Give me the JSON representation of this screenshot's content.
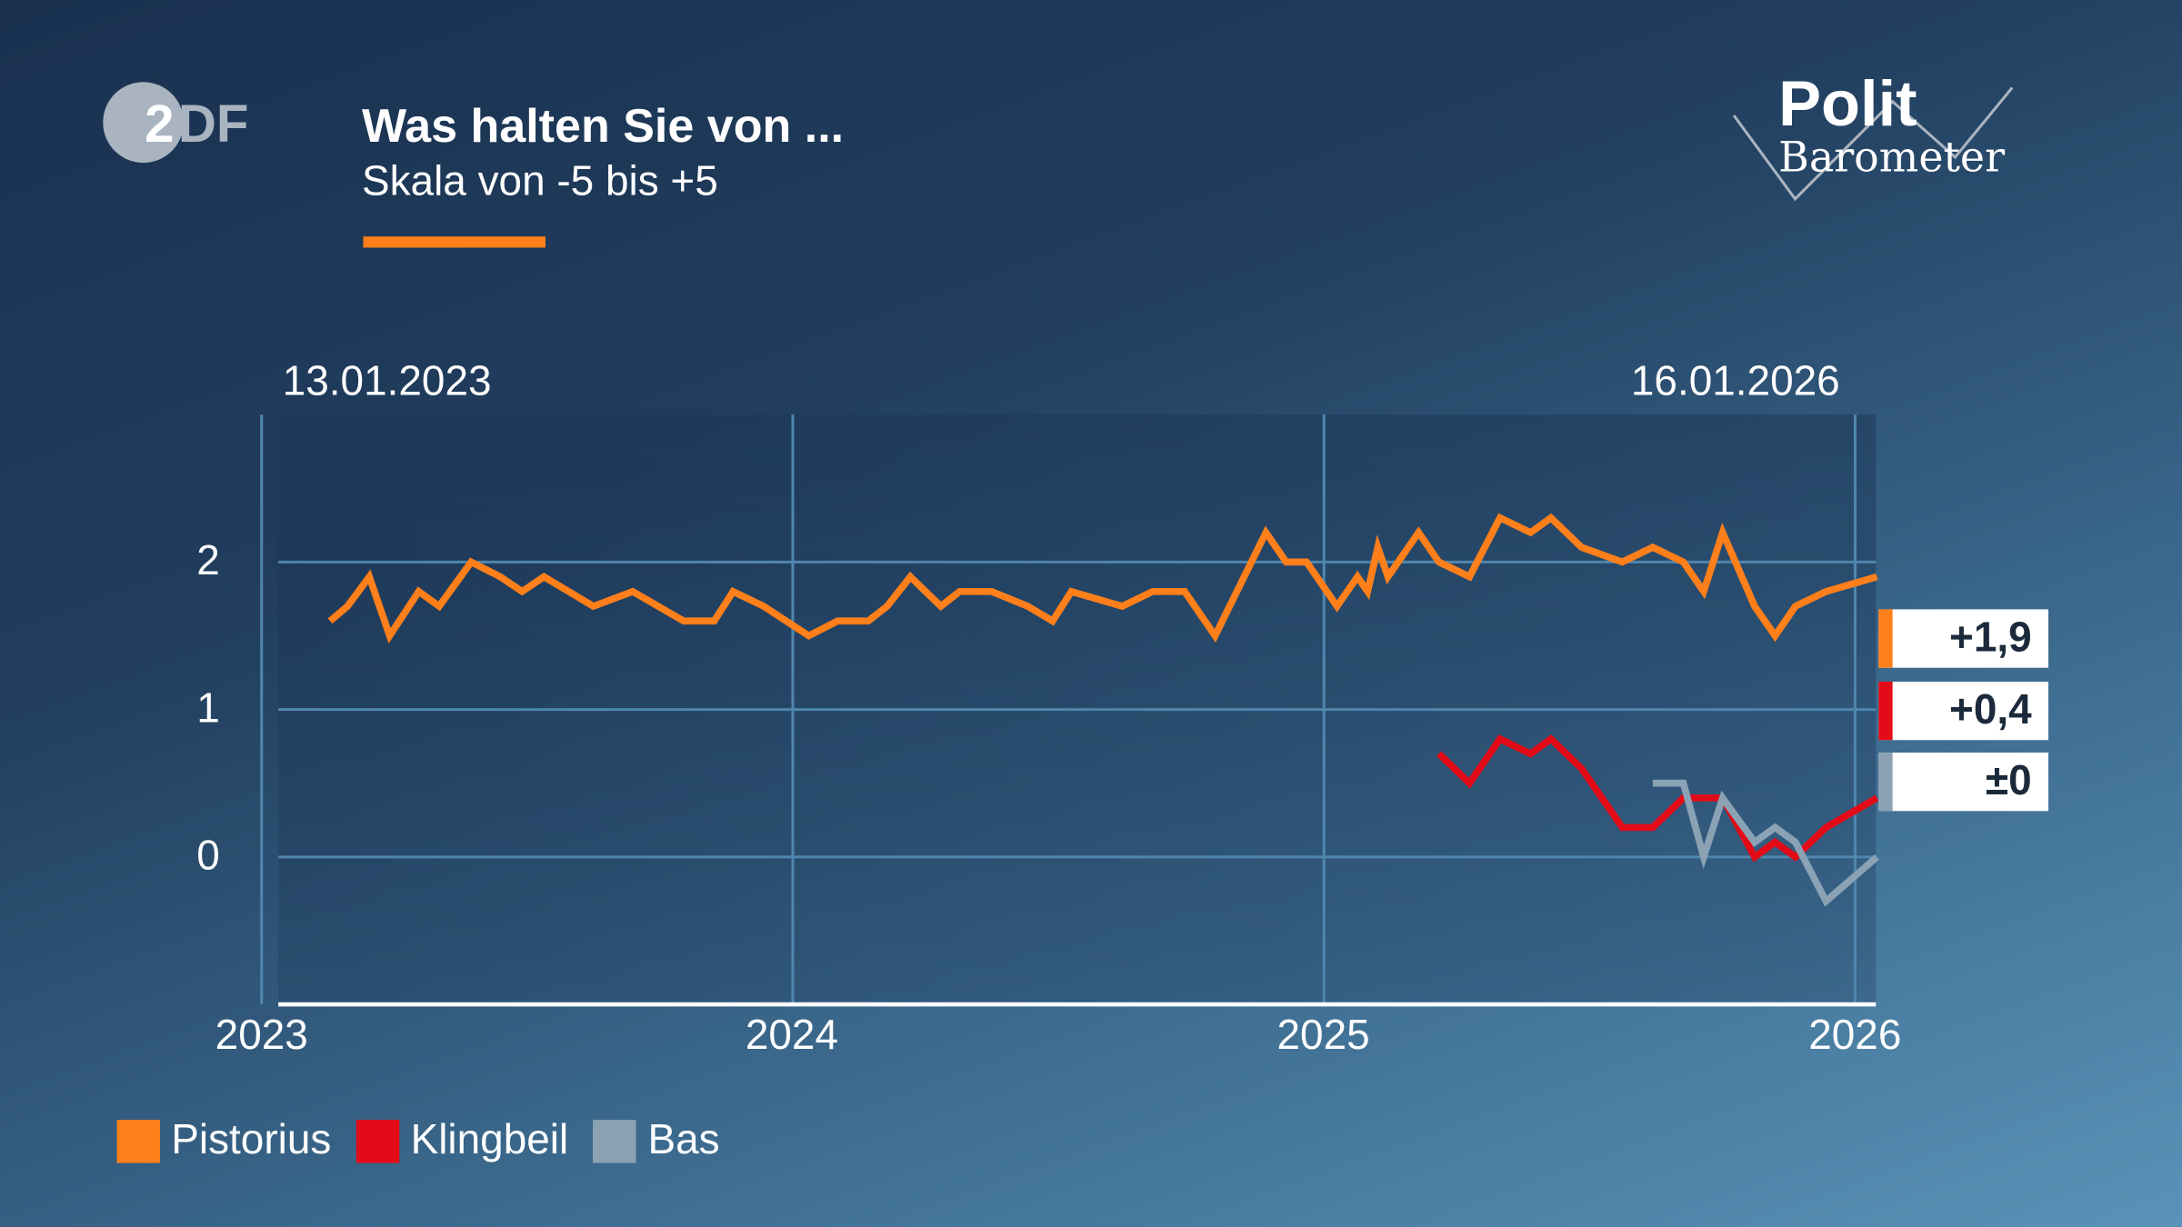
{
  "header": {
    "title": "Was halten Sie von ...",
    "subtitle": "Skala von -5 bis +5",
    "logo_left": "ZDF",
    "logo_right": "Polit Barometer"
  },
  "chart_data": {
    "type": "line",
    "title": "Was halten Sie von ...",
    "subtitle": "Skala von -5 bis +5",
    "start_label": "13.01.2023",
    "end_label": "16.01.2026",
    "ylim": [
      -1,
      3
    ],
    "yticks": [
      "0",
      "1",
      "2"
    ],
    "xticks": [
      "2023",
      "2024",
      "2025",
      "2026"
    ],
    "grid": true,
    "legend_position": "bottom-left",
    "series": [
      {
        "name": "Pistorius",
        "color": "#ff7f1a",
        "last_label": "+1,9",
        "points": [
          [
            "2023-02-17",
            1.6
          ],
          [
            "2023-03-01",
            1.7
          ],
          [
            "2023-03-16",
            1.9
          ],
          [
            "2023-03-30",
            1.5
          ],
          [
            "2023-04-19",
            1.8
          ],
          [
            "2023-05-03",
            1.7
          ],
          [
            "2023-05-25",
            2.0
          ],
          [
            "2023-06-14",
            1.9
          ],
          [
            "2023-06-29",
            1.8
          ],
          [
            "2023-07-14",
            1.9
          ],
          [
            "2023-08-17",
            1.7
          ],
          [
            "2023-09-13",
            1.8
          ],
          [
            "2023-10-18",
            1.6
          ],
          [
            "2023-11-08",
            1.6
          ],
          [
            "2023-11-21",
            1.8
          ],
          [
            "2023-12-12",
            1.7
          ],
          [
            "2024-01-12",
            1.5
          ],
          [
            "2024-02-01",
            1.6
          ],
          [
            "2024-02-22",
            1.6
          ],
          [
            "2024-03-06",
            1.7
          ],
          [
            "2024-03-22",
            1.9
          ],
          [
            "2024-04-12",
            1.7
          ],
          [
            "2024-04-25",
            1.8
          ],
          [
            "2024-05-17",
            1.8
          ],
          [
            "2024-06-11",
            1.7
          ],
          [
            "2024-06-28",
            1.6
          ],
          [
            "2024-07-11",
            1.8
          ],
          [
            "2024-08-15",
            1.7
          ],
          [
            "2024-09-05",
            1.8
          ],
          [
            "2024-09-27",
            1.8
          ],
          [
            "2024-10-18",
            1.5
          ],
          [
            "2024-11-22",
            2.2
          ],
          [
            "2024-12-06",
            2.0
          ],
          [
            "2024-12-20",
            2.0
          ],
          [
            "2025-01-10",
            1.7
          ],
          [
            "2025-01-24",
            1.9
          ],
          [
            "2025-01-31",
            1.8
          ],
          [
            "2025-02-07",
            2.1
          ],
          [
            "2025-02-14",
            1.9
          ],
          [
            "2025-03-07",
            2.2
          ],
          [
            "2025-03-21",
            2.0
          ],
          [
            "2025-04-11",
            1.9
          ],
          [
            "2025-05-02",
            2.3
          ],
          [
            "2025-05-23",
            2.2
          ],
          [
            "2025-06-06",
            2.3
          ],
          [
            "2025-06-27",
            2.1
          ],
          [
            "2025-07-25",
            2.0
          ],
          [
            "2025-08-15",
            2.1
          ],
          [
            "2025-09-05",
            2.0
          ],
          [
            "2025-09-19",
            1.8
          ],
          [
            "2025-10-02",
            2.2
          ],
          [
            "2025-10-24",
            1.7
          ],
          [
            "2025-11-07",
            1.5
          ],
          [
            "2025-11-21",
            1.7
          ],
          [
            "2025-12-12",
            1.8
          ],
          [
            "2026-01-16",
            1.9
          ]
        ]
      },
      {
        "name": "Klingbeil",
        "color": "#e30b17",
        "last_label": "+0,4",
        "points": [
          [
            "2025-03-21",
            0.7
          ],
          [
            "2025-04-11",
            0.5
          ],
          [
            "2025-05-02",
            0.8
          ],
          [
            "2025-05-23",
            0.7
          ],
          [
            "2025-06-06",
            0.8
          ],
          [
            "2025-06-27",
            0.6
          ],
          [
            "2025-07-25",
            0.2
          ],
          [
            "2025-08-15",
            0.2
          ],
          [
            "2025-09-05",
            0.4
          ],
          [
            "2025-10-02",
            0.4
          ],
          [
            "2025-10-24",
            0.0
          ],
          [
            "2025-11-07",
            0.1
          ],
          [
            "2025-11-21",
            0.0
          ],
          [
            "2025-12-12",
            0.2
          ],
          [
            "2026-01-16",
            0.4
          ]
        ]
      },
      {
        "name": "Bas",
        "color": "#8aa2b4",
        "last_label": "±0",
        "points": [
          [
            "2025-08-15",
            0.5
          ],
          [
            "2025-09-05",
            0.5
          ],
          [
            "2025-09-19",
            0.0
          ],
          [
            "2025-10-02",
            0.4
          ],
          [
            "2025-10-24",
            0.1
          ],
          [
            "2025-11-07",
            0.2
          ],
          [
            "2025-11-21",
            0.1
          ],
          [
            "2025-12-12",
            -0.3
          ],
          [
            "2026-01-16",
            0.0
          ]
        ]
      }
    ]
  }
}
